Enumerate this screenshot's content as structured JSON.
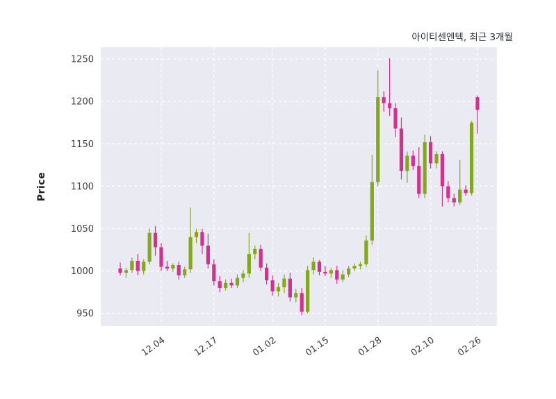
{
  "header": {
    "title": "아이티센엔텍, 최근 3개월"
  },
  "chart_data": {
    "type": "candlestick",
    "title": "아이티센엔텍, 최근 3개월",
    "xlabel": "",
    "ylabel": "Price",
    "ylim": [
      935,
      1264
    ],
    "grid": true,
    "legend": "none",
    "y_ticks": [
      950,
      1000,
      1050,
      1100,
      1150,
      1200,
      1250
    ],
    "x_tick_labels": [
      "12.04",
      "12.17",
      "01.02",
      "01.15",
      "01.28",
      "02.10",
      "02.26"
    ],
    "x_tick_indices": [
      7,
      16,
      26,
      35,
      44,
      53,
      61
    ],
    "colors": {
      "up": "#84a81b",
      "down": "#d6308f",
      "plot_bg": "#eaeaf2",
      "grid": "#ffffff"
    },
    "candles_format": [
      "open",
      "high",
      "low",
      "close"
    ],
    "candles": [
      [
        1003,
        1010,
        995,
        998
      ],
      [
        998,
        1004,
        992,
        1001
      ],
      [
        1001,
        1016,
        998,
        1012
      ],
      [
        1012,
        1020,
        995,
        1000
      ],
      [
        1000,
        1014,
        996,
        1011
      ],
      [
        1011,
        1050,
        1008,
        1045
      ],
      [
        1045,
        1053,
        1018,
        1028
      ],
      [
        1028,
        1033,
        1000,
        1005
      ],
      [
        1005,
        1012,
        1000,
        1003
      ],
      [
        1003,
        1009,
        999,
        1007
      ],
      [
        1007,
        1011,
        990,
        995
      ],
      [
        995,
        1005,
        992,
        1002
      ],
      [
        1002,
        1075,
        998,
        1040
      ],
      [
        1040,
        1050,
        1033,
        1046
      ],
      [
        1046,
        1050,
        1020,
        1030
      ],
      [
        1030,
        1044,
        1003,
        1008
      ],
      [
        1008,
        1014,
        983,
        988
      ],
      [
        988,
        994,
        975,
        980
      ],
      [
        980,
        990,
        977,
        986
      ],
      [
        986,
        991,
        980,
        983
      ],
      [
        983,
        996,
        980,
        992
      ],
      [
        992,
        1001,
        987,
        997
      ],
      [
        997,
        1045,
        992,
        1020
      ],
      [
        1020,
        1030,
        1014,
        1026
      ],
      [
        1026,
        1031,
        1000,
        1004
      ],
      [
        1004,
        1009,
        984,
        989
      ],
      [
        989,
        995,
        971,
        976
      ],
      [
        976,
        986,
        970,
        981
      ],
      [
        981,
        996,
        974,
        991
      ],
      [
        991,
        998,
        964,
        969
      ],
      [
        969,
        979,
        963,
        974
      ],
      [
        974,
        980,
        948,
        952
      ],
      [
        952,
        1006,
        950,
        1001
      ],
      [
        1001,
        1016,
        996,
        1011
      ],
      [
        1011,
        1013,
        995,
        999
      ],
      [
        999,
        1006,
        994,
        997
      ],
      [
        997,
        1004,
        992,
        1001
      ],
      [
        1001,
        1006,
        985,
        990
      ],
      [
        990,
        1001,
        987,
        996
      ],
      [
        996,
        1006,
        993,
        1003
      ],
      [
        1003,
        1009,
        1000,
        1006
      ],
      [
        1006,
        1011,
        1002,
        1008
      ],
      [
        1008,
        1042,
        1005,
        1036
      ],
      [
        1036,
        1137,
        1031,
        1105
      ],
      [
        1105,
        1237,
        1100,
        1205
      ],
      [
        1205,
        1212,
        1188,
        1198
      ],
      [
        1198,
        1251,
        1183,
        1192
      ],
      [
        1192,
        1198,
        1158,
        1168
      ],
      [
        1168,
        1181,
        1108,
        1118
      ],
      [
        1118,
        1141,
        1104,
        1136
      ],
      [
        1136,
        1142,
        1119,
        1124
      ],
      [
        1124,
        1146,
        1086,
        1091
      ],
      [
        1091,
        1161,
        1086,
        1152
      ],
      [
        1152,
        1159,
        1121,
        1127
      ],
      [
        1127,
        1141,
        1121,
        1138
      ],
      [
        1138,
        1141,
        1076,
        1100
      ],
      [
        1100,
        1106,
        1081,
        1086
      ],
      [
        1086,
        1091,
        1076,
        1081
      ],
      [
        1081,
        1131,
        1078,
        1096
      ],
      [
        1096,
        1101,
        1089,
        1092
      ],
      [
        1092,
        1177,
        1089,
        1175
      ],
      [
        1205,
        1207,
        1162,
        1190
      ]
    ]
  }
}
